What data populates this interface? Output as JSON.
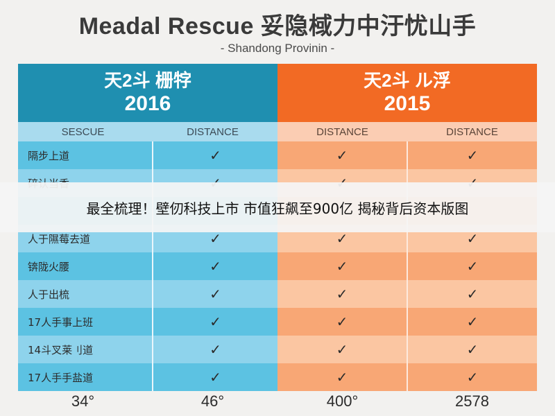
{
  "header": {
    "title": "Meadal Rescue 妥隐棫力中汙忧山手",
    "subtitle": "- Shandong Provinin -"
  },
  "columns": {
    "left": {
      "label": "天2斗 栅牸",
      "year": "2016",
      "sub": [
        "SESCUE",
        "DISTANCE"
      ]
    },
    "right": {
      "label": "天2斗 ル浮",
      "year": "2015",
      "sub": [
        "DISTANCE",
        "DISTANCE"
      ]
    }
  },
  "rows": [
    {
      "name": "隔步上道",
      "checks": [
        "✓",
        "✓",
        "✓"
      ]
    },
    {
      "name": "碎认当香",
      "checks": [
        "✓",
        "✓",
        "✓"
      ]
    },
    {
      "name": "",
      "checks": [
        "",
        "",
        ""
      ]
    },
    {
      "name": "人于隰莓去道",
      "checks": [
        "✓",
        "✓",
        "✓"
      ]
    },
    {
      "name": "锛陇火腰",
      "checks": [
        "✓",
        "✓",
        "✓"
      ]
    },
    {
      "name": "人于出梳",
      "checks": [
        "✓",
        "✓",
        "✓"
      ]
    },
    {
      "name": "17人手事上班",
      "checks": [
        "✓",
        "✓",
        "✓"
      ]
    },
    {
      "name": "14斗叉莱刂道",
      "checks": [
        "✓",
        "✓",
        "✓"
      ]
    },
    {
      "name": "17人手手盐道",
      "checks": [
        "✓",
        "✓",
        "✓"
      ]
    }
  ],
  "footer": [
    "34°",
    "46°",
    "400°",
    "2578"
  ],
  "banner": {
    "text": "最全梳理！壁仞科技上市 市值狂飙至900亿 揭秘背后资本版图"
  },
  "colors": {
    "left_header": "#1f8fb0",
    "right_header": "#f26a24"
  }
}
